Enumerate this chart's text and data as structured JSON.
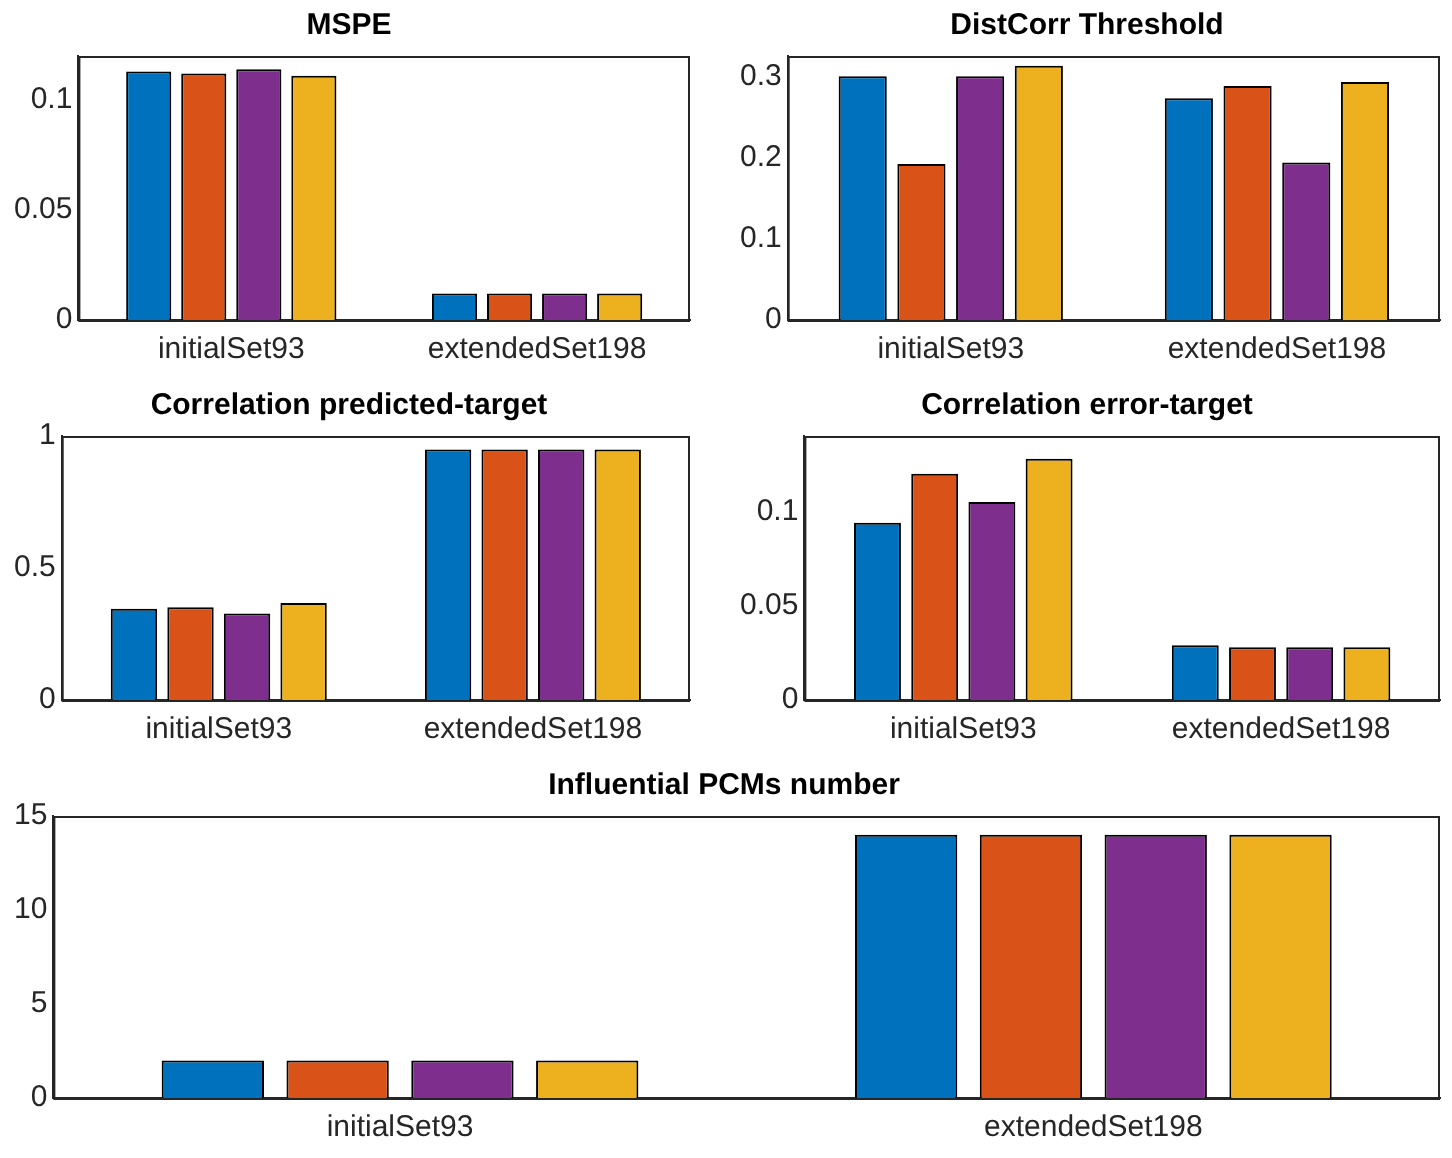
{
  "chart_data": [
    {
      "type": "bar",
      "title": "MSPE",
      "categories": [
        "initialSet93",
        "extendedSet198"
      ],
      "ylim": [
        0,
        0.12
      ],
      "yticks": [
        0,
        0.05,
        0.1
      ],
      "grid": false,
      "legend": false,
      "series": [
        {
          "color": "#0072bd",
          "values": [
            0.113,
            0.012
          ]
        },
        {
          "color": "#d95319",
          "values": [
            0.112,
            0.012
          ]
        },
        {
          "color": "#7e2f8e",
          "values": [
            0.114,
            0.012
          ]
        },
        {
          "color": "#edb120",
          "values": [
            0.111,
            0.012
          ]
        }
      ]
    },
    {
      "type": "bar",
      "title": "DistCorr Threshold",
      "categories": [
        "initialSet93",
        "extendedSet198"
      ],
      "ylim": [
        0,
        0.325
      ],
      "yticks": [
        0,
        0.1,
        0.2,
        0.3
      ],
      "grid": false,
      "legend": false,
      "series": [
        {
          "color": "#0072bd",
          "values": [
            0.3,
            0.273
          ]
        },
        {
          "color": "#d95319",
          "values": [
            0.192,
            0.288
          ]
        },
        {
          "color": "#7e2f8e",
          "values": [
            0.3,
            0.194
          ]
        },
        {
          "color": "#edb120",
          "values": [
            0.313,
            0.293
          ]
        }
      ]
    },
    {
      "type": "bar",
      "title": "Correlation predicted-target",
      "categories": [
        "initialSet93",
        "extendedSet198"
      ],
      "ylim": [
        0,
        1
      ],
      "yticks": [
        0,
        0.5,
        1
      ],
      "grid": false,
      "legend": false,
      "series": [
        {
          "color": "#0072bd",
          "values": [
            0.346,
            0.949
          ]
        },
        {
          "color": "#d95319",
          "values": [
            0.351,
            0.949
          ]
        },
        {
          "color": "#7e2f8e",
          "values": [
            0.328,
            0.949
          ]
        },
        {
          "color": "#edb120",
          "values": [
            0.367,
            0.949
          ]
        }
      ]
    },
    {
      "type": "bar",
      "title": "Correlation error-target",
      "categories": [
        "initialSet93",
        "extendedSet198"
      ],
      "ylim": [
        0,
        0.14
      ],
      "yticks": [
        0,
        0.05,
        0.1
      ],
      "grid": false,
      "legend": false,
      "series": [
        {
          "color": "#0072bd",
          "values": [
            0.094,
            0.029
          ]
        },
        {
          "color": "#d95319",
          "values": [
            0.12,
            0.028
          ]
        },
        {
          "color": "#7e2f8e",
          "values": [
            0.105,
            0.028
          ]
        },
        {
          "color": "#edb120",
          "values": [
            0.128,
            0.028
          ]
        }
      ]
    },
    {
      "type": "bar",
      "title": "Influential PCMs number",
      "categories": [
        "initialSet93",
        "extendedSet198"
      ],
      "ylim": [
        0,
        15
      ],
      "yticks": [
        0,
        5,
        10,
        15
      ],
      "grid": false,
      "legend": false,
      "series": [
        {
          "color": "#0072bd",
          "values": [
            2,
            14
          ]
        },
        {
          "color": "#d95319",
          "values": [
            2,
            14
          ]
        },
        {
          "color": "#7e2f8e",
          "values": [
            2,
            14
          ]
        },
        {
          "color": "#edb120",
          "values": [
            2,
            14
          ]
        }
      ]
    }
  ]
}
